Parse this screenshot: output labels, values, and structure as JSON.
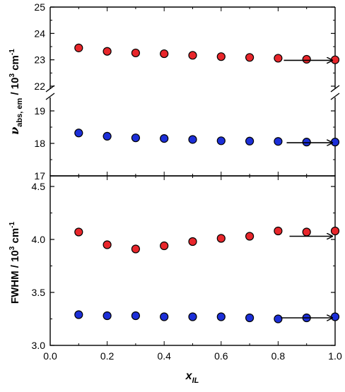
{
  "chart_data": [
    {
      "type": "scatter",
      "panel": "top",
      "ylabel_parts": {
        "symbol": "ν",
        "subscript": "abs, em",
        "middle": " / 10",
        "sup1": "3",
        "unit": " cm",
        "sup2": "-1"
      },
      "x_range": [
        0.0,
        1.0
      ],
      "y_break": {
        "upper": [
          22,
          25
        ],
        "lower": [
          17,
          19.5
        ]
      },
      "y_ticks": {
        "upper": [
          {
            "v": 25,
            "label": "25"
          },
          {
            "v": 24,
            "label": "24"
          },
          {
            "v": 23,
            "label": "23"
          },
          {
            "v": 22,
            "label": "22"
          }
        ],
        "lower": [
          {
            "v": 19,
            "label": "19"
          },
          {
            "v": 18,
            "label": "18"
          },
          {
            "v": 17,
            "label": "17"
          }
        ]
      },
      "series": [
        {
          "color": "#e8262b",
          "segment": "upper",
          "x": [
            0.1,
            0.2,
            0.3,
            0.4,
            0.5,
            0.6,
            0.7,
            0.8,
            0.9,
            1.0
          ],
          "y": [
            23.45,
            23.32,
            23.26,
            23.23,
            23.17,
            23.12,
            23.09,
            23.06,
            23.02,
            23.0
          ]
        },
        {
          "color": "#1c2fd8",
          "segment": "lower",
          "x": [
            0.1,
            0.2,
            0.3,
            0.4,
            0.5,
            0.6,
            0.7,
            0.8,
            0.9,
            1.0
          ],
          "y": [
            18.32,
            18.22,
            18.17,
            18.15,
            18.12,
            18.08,
            18.07,
            18.06,
            18.04,
            18.04
          ]
        }
      ],
      "arrows": [
        {
          "segment": "upper",
          "from_x": 0.82,
          "to_x": 0.99,
          "y": 22.98
        },
        {
          "segment": "lower",
          "from_x": 0.83,
          "to_x": 0.99,
          "y": 18.02
        }
      ]
    },
    {
      "type": "scatter",
      "panel": "bottom",
      "ylabel_parts": {
        "main": "FWHM / 10",
        "sup1": "3",
        "unit": " cm",
        "sup2": "-1"
      },
      "xlabel_parts": {
        "main": "x",
        "subscript": "IL"
      },
      "x_range": [
        0.0,
        1.0
      ],
      "ylim": [
        3.0,
        4.5
      ],
      "x_ticks": [
        {
          "v": 0.0,
          "label": "0.0"
        },
        {
          "v": 0.2,
          "label": "0.2"
        },
        {
          "v": 0.4,
          "label": "0.4"
        },
        {
          "v": 0.6,
          "label": "0.6"
        },
        {
          "v": 0.8,
          "label": "0.8"
        },
        {
          "v": 1.0,
          "label": "1.0"
        }
      ],
      "y_ticks": [
        {
          "v": 4.5,
          "label": "4.5"
        },
        {
          "v": 4.0,
          "label": "4.0"
        },
        {
          "v": 3.5,
          "label": "3.5"
        },
        {
          "v": 3.0,
          "label": "3.0"
        }
      ],
      "series": [
        {
          "color": "#e8262b",
          "x": [
            0.1,
            0.2,
            0.3,
            0.4,
            0.5,
            0.6,
            0.7,
            0.8,
            0.9,
            1.0
          ],
          "y": [
            4.07,
            3.95,
            3.91,
            3.94,
            3.98,
            4.01,
            4.03,
            4.08,
            4.07,
            4.08
          ]
        },
        {
          "color": "#1c2fd8",
          "x": [
            0.1,
            0.2,
            0.3,
            0.4,
            0.5,
            0.6,
            0.7,
            0.8,
            0.9,
            1.0
          ],
          "y": [
            3.29,
            3.28,
            3.28,
            3.27,
            3.27,
            3.27,
            3.26,
            3.25,
            3.26,
            3.27
          ]
        }
      ],
      "arrows": [
        {
          "from_x": 0.84,
          "to_x": 0.99,
          "y": 4.03
        },
        {
          "from_x": 0.81,
          "to_x": 0.99,
          "y": 3.26
        }
      ]
    }
  ]
}
